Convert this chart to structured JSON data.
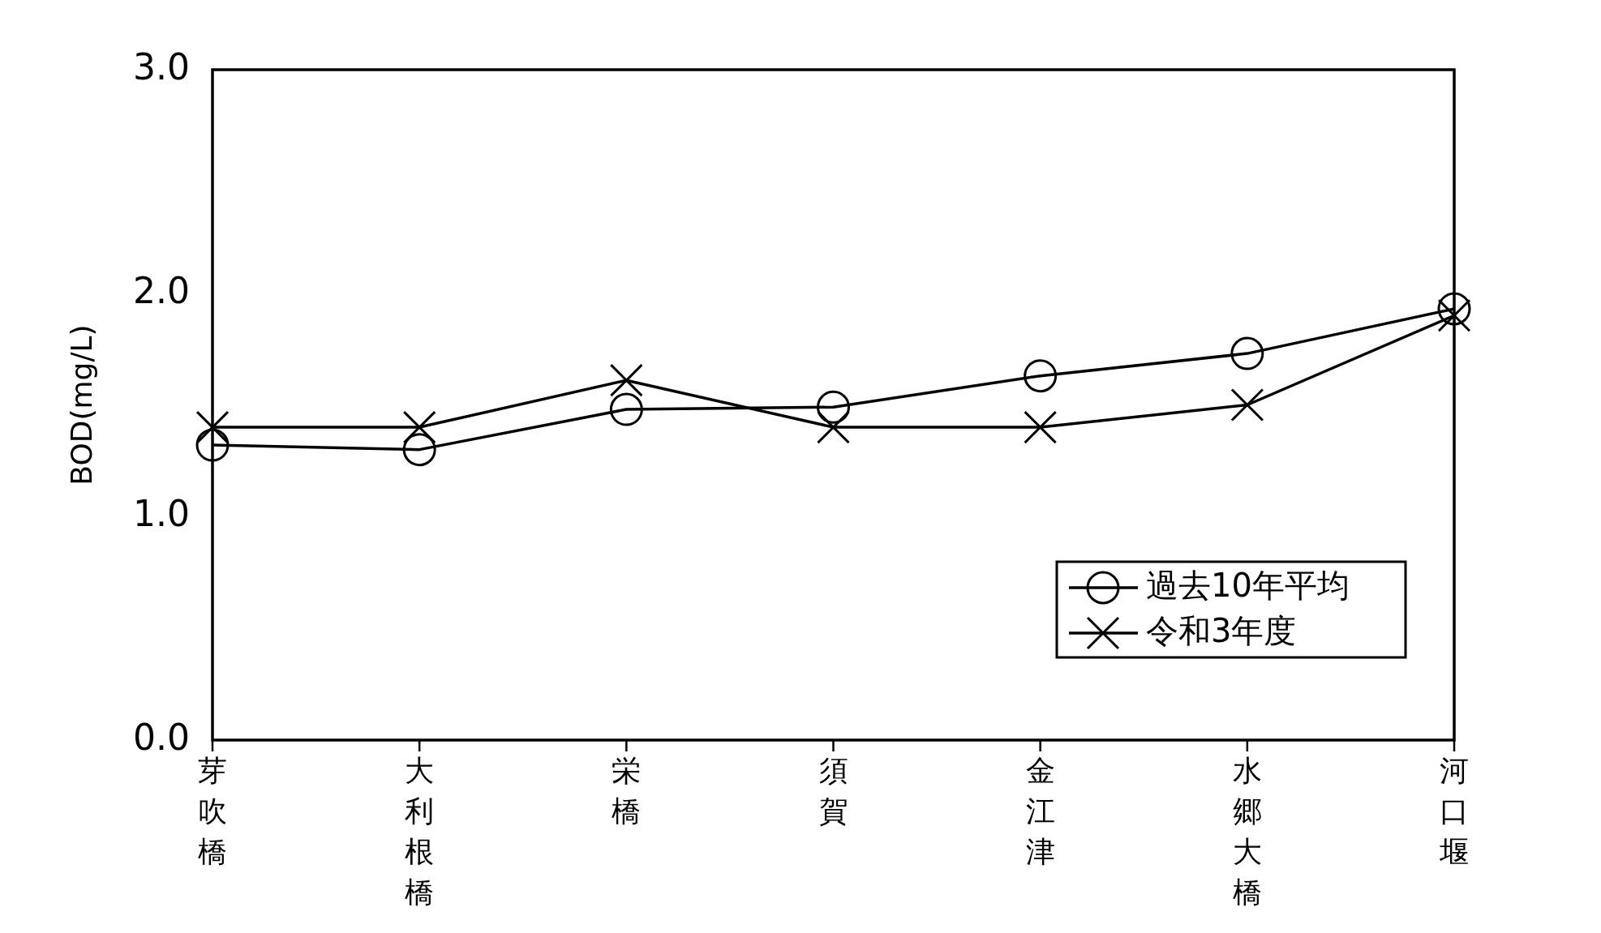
{
  "chart_data": {
    "type": "line",
    "ylabel": "BOD(mg/L)",
    "categories": [
      "芽吹橋",
      "大利根橋",
      "栄橋",
      "須賀",
      "金江津",
      "水郷大橋",
      "河口堰"
    ],
    "series": [
      {
        "name": "過去10年平均",
        "color": "#000000",
        "marker": "circle",
        "values": [
          1.32,
          1.3,
          1.48,
          1.49,
          1.63,
          1.73,
          1.93
        ]
      },
      {
        "name": "令和3年度",
        "color": "#000000",
        "marker": "cross",
        "values": [
          1.4,
          1.4,
          1.61,
          1.4,
          1.4,
          1.5,
          1.9
        ]
      }
    ],
    "ylim": [
      0,
      3
    ],
    "yticks": [
      {
        "value": 0,
        "label": "0.0"
      },
      {
        "value": 1,
        "label": "1.0"
      },
      {
        "value": 2,
        "label": "2.0"
      },
      {
        "value": 3,
        "label": "3.0"
      }
    ],
    "grid": false,
    "legend": "bottom right",
    "line_style": "solid"
  }
}
